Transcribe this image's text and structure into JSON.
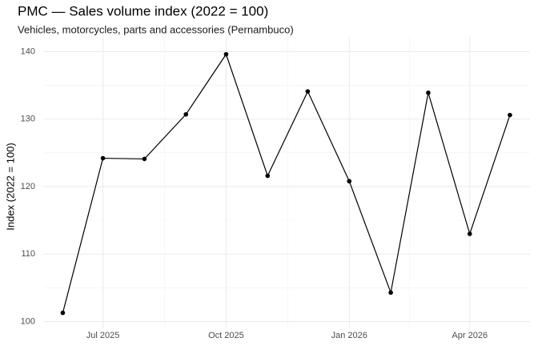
{
  "chart_data": {
    "type": "line",
    "title": "PMC — Sales volume index (2022 = 100)",
    "subtitle": "Vehicles, motorcycles, parts and accessories (Pernambuco)",
    "y_label": "Index (2022 = 100)",
    "x": [
      "2025-06",
      "2025-07",
      "2025-08",
      "2025-09",
      "2025-10",
      "2025-11",
      "2025-12",
      "2026-01",
      "2026-02",
      "2026-03",
      "2026-04",
      "2026-05"
    ],
    "series": [
      {
        "name": "Index",
        "color": "#000000",
        "values": [
          101.3,
          124.2,
          124.1,
          130.7,
          139.6,
          121.6,
          134.1,
          120.8,
          104.3,
          133.9,
          113.0,
          130.6
        ]
      }
    ],
    "xlim": [
      "2025-05-18",
      "2026-05-16"
    ],
    "xticks": [
      {
        "value": "2025-07",
        "label": "Jul 2025"
      },
      {
        "value": "2025-10",
        "label": "Oct 2025"
      },
      {
        "value": "2026-01",
        "label": "Jan 2026"
      },
      {
        "value": "2026-04",
        "label": "Apr 2026"
      }
    ],
    "ylim": [
      99,
      142.3
    ],
    "yticks": [
      100,
      110,
      120,
      130,
      140
    ],
    "grid": true
  }
}
